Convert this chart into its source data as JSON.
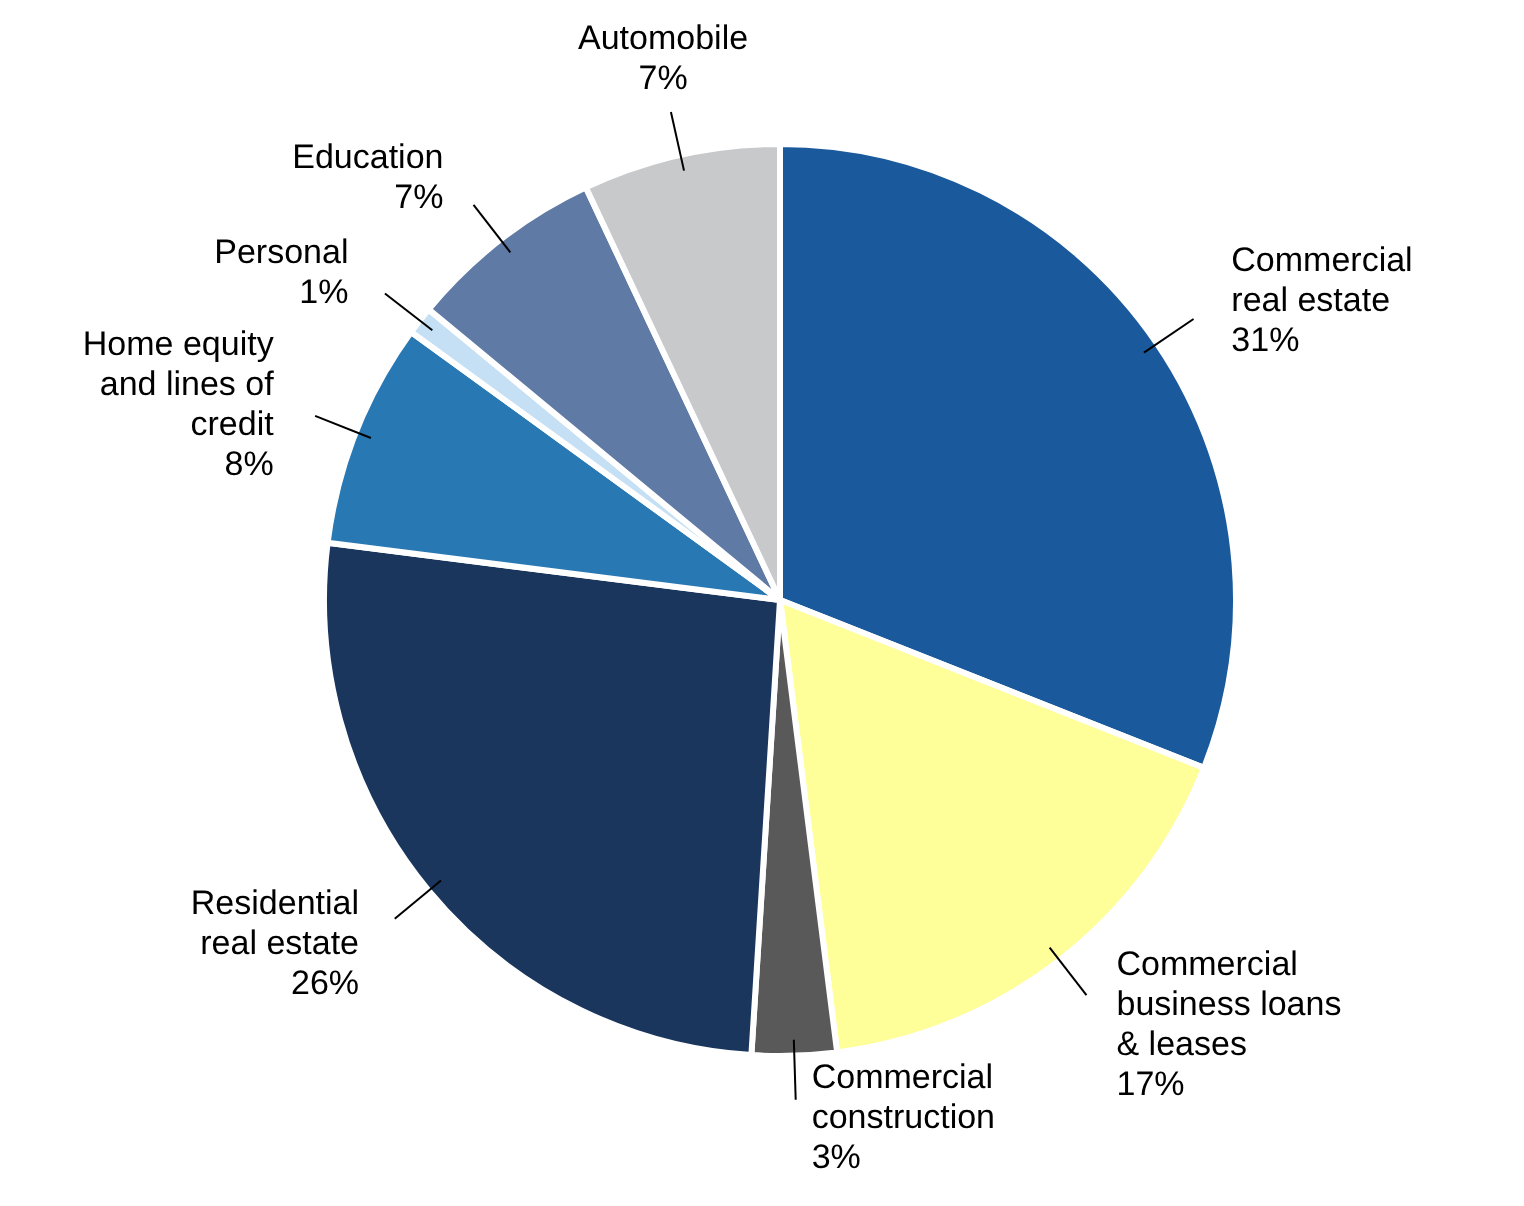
{
  "chart_data": {
    "type": "pie",
    "categories": [
      "Commercial real estate",
      "Commercial business loans & leases",
      "Commercial construction",
      "Residential real estate",
      "Home equity and lines of credit",
      "Personal",
      "Education",
      "Automobile"
    ],
    "values": [
      31,
      17,
      3,
      26,
      8,
      1,
      7,
      7
    ],
    "colors": [
      "#1a5a9c",
      "#ffff99",
      "#595959",
      "#1a365d",
      "#2878b4",
      "#c5e0f4",
      "#5f7aa5",
      "#c8c9cb"
    ],
    "value_labels": [
      "31%",
      "17%",
      "3%",
      "26%",
      "8%",
      "1%",
      "7%",
      "7%"
    ]
  }
}
